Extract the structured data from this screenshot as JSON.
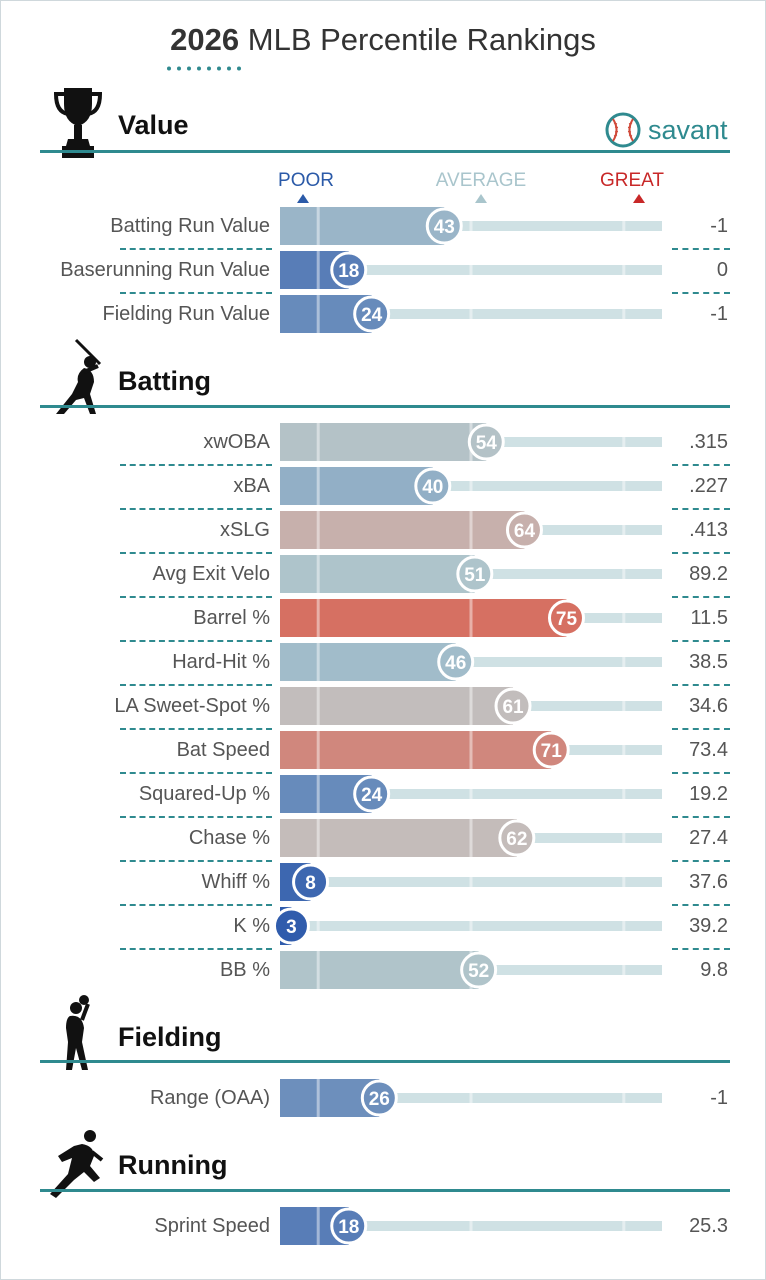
{
  "title": {
    "year": "2026",
    "rest": "MLB Percentile Rankings"
  },
  "brand": {
    "name": "savant",
    "icon": "baseball-icon"
  },
  "scale": {
    "poor": "POOR",
    "average": "AVERAGE",
    "great": "GREAT"
  },
  "colors": {
    "accent": "#2f8a8f",
    "poor": "#2b5aa8",
    "great": "#c82828",
    "average": "#a9c5cc",
    "track": "#cfe1e4"
  },
  "sections": [
    {
      "title": "Value",
      "icon": "trophy-icon"
    },
    {
      "title": "Batting",
      "icon": "batter-icon"
    },
    {
      "title": "Fielding",
      "icon": "fielder-icon"
    },
    {
      "title": "Running",
      "icon": "runner-icon"
    }
  ],
  "chart_data": {
    "type": "bar",
    "title": "2026 MLB Percentile Rankings",
    "xlim": [
      0,
      100
    ],
    "series": [
      {
        "section": "Value",
        "metrics": [
          {
            "label": "Batting Run Value",
            "percentile": 43,
            "value": "-1"
          },
          {
            "label": "Baserunning Run Value",
            "percentile": 18,
            "value": "0"
          },
          {
            "label": "Fielding Run Value",
            "percentile": 24,
            "value": "-1"
          }
        ]
      },
      {
        "section": "Batting",
        "metrics": [
          {
            "label": "xwOBA",
            "percentile": 54,
            "value": ".315"
          },
          {
            "label": "xBA",
            "percentile": 40,
            "value": ".227"
          },
          {
            "label": "xSLG",
            "percentile": 64,
            "value": ".413"
          },
          {
            "label": "Avg Exit Velo",
            "percentile": 51,
            "value": "89.2"
          },
          {
            "label": "Barrel %",
            "percentile": 75,
            "value": "11.5"
          },
          {
            "label": "Hard-Hit %",
            "percentile": 46,
            "value": "38.5"
          },
          {
            "label": "LA Sweet-Spot %",
            "percentile": 61,
            "value": "34.6"
          },
          {
            "label": "Bat Speed",
            "percentile": 71,
            "value": "73.4"
          },
          {
            "label": "Squared-Up %",
            "percentile": 24,
            "value": "19.2"
          },
          {
            "label": "Chase %",
            "percentile": 62,
            "value": "27.4"
          },
          {
            "label": "Whiff %",
            "percentile": 8,
            "value": "37.6"
          },
          {
            "label": "K %",
            "percentile": 3,
            "value": "39.2"
          },
          {
            "label": "BB %",
            "percentile": 52,
            "value": "9.8"
          }
        ]
      },
      {
        "section": "Fielding",
        "metrics": [
          {
            "label": "Range (OAA)",
            "percentile": 26,
            "value": "-1"
          }
        ]
      },
      {
        "section": "Running",
        "metrics": [
          {
            "label": "Sprint Speed",
            "percentile": 18,
            "value": "25.3"
          }
        ]
      }
    ]
  }
}
